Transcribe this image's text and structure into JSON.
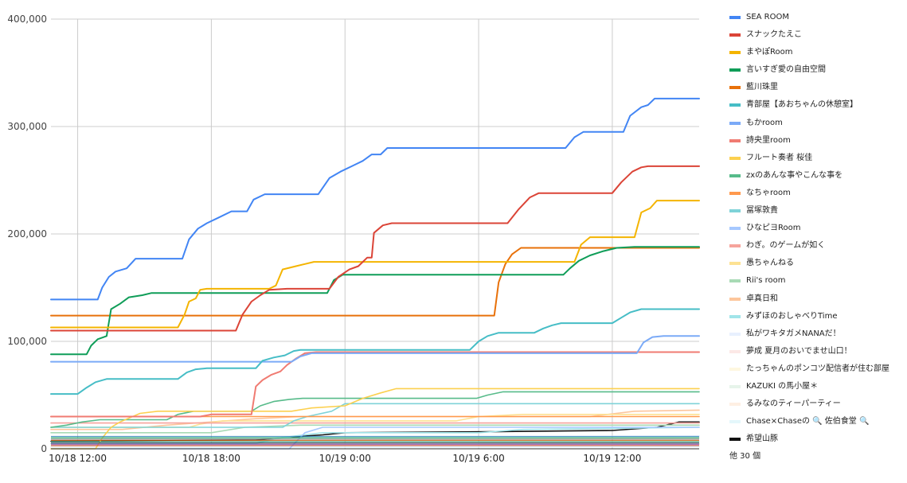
{
  "chart_data": {
    "type": "line",
    "title": "",
    "xlabel": "",
    "ylabel": "",
    "x_ticks": [
      "10/18 12:00",
      "10/18 18:00",
      "10/19 0:00",
      "10/19 6:00",
      "10/19 12:00"
    ],
    "x_tick_hours": [
      12,
      18,
      24,
      30,
      36
    ],
    "x_range_hours": [
      10.8,
      39.9
    ],
    "ylim": [
      0,
      400000
    ],
    "y_ticks": [
      0,
      100000,
      200000,
      300000,
      400000
    ],
    "y_tick_labels": [
      "0",
      "100,000",
      "200,000",
      "300,000",
      "400,000"
    ],
    "grid": true,
    "legend_position": "right",
    "legend_more": "他 30 個",
    "series": [
      {
        "name": "SEA ROOM",
        "color": "#4285f4",
        "points": [
          [
            10.8,
            139000
          ],
          [
            12.9,
            139000
          ],
          [
            13.1,
            150000
          ],
          [
            13.4,
            160000
          ],
          [
            13.7,
            165000
          ],
          [
            14.2,
            168000
          ],
          [
            14.6,
            177000
          ],
          [
            16.7,
            177000
          ],
          [
            17.0,
            195000
          ],
          [
            17.4,
            205000
          ],
          [
            17.8,
            210000
          ],
          [
            18.3,
            215000
          ],
          [
            18.9,
            221000
          ],
          [
            19.6,
            221000
          ],
          [
            19.9,
            232000
          ],
          [
            20.4,
            237000
          ],
          [
            22.8,
            237000
          ],
          [
            23.3,
            252000
          ],
          [
            23.8,
            258000
          ],
          [
            24.4,
            264000
          ],
          [
            24.8,
            268000
          ],
          [
            25.2,
            274000
          ],
          [
            25.6,
            274000
          ],
          [
            25.9,
            280000
          ],
          [
            33.9,
            280000
          ],
          [
            34.3,
            290000
          ],
          [
            34.7,
            295000
          ],
          [
            36.5,
            295000
          ],
          [
            36.8,
            310000
          ],
          [
            37.3,
            318000
          ],
          [
            37.6,
            320000
          ],
          [
            37.9,
            326000
          ],
          [
            39.9,
            326000
          ]
        ]
      },
      {
        "name": "スナックたえこ",
        "color": "#db4437",
        "points": [
          [
            10.8,
            110000
          ],
          [
            19.1,
            110000
          ],
          [
            19.4,
            125000
          ],
          [
            19.8,
            137000
          ],
          [
            20.2,
            143000
          ],
          [
            20.6,
            148000
          ],
          [
            21.4,
            149000
          ],
          [
            23.3,
            149000
          ],
          [
            23.7,
            160000
          ],
          [
            24.2,
            167000
          ],
          [
            24.6,
            170000
          ],
          [
            25.0,
            178000
          ],
          [
            25.2,
            178000
          ],
          [
            25.3,
            201000
          ],
          [
            25.7,
            208000
          ],
          [
            26.1,
            210000
          ],
          [
            31.3,
            210000
          ],
          [
            31.8,
            223000
          ],
          [
            32.3,
            234000
          ],
          [
            32.7,
            238000
          ],
          [
            36.0,
            238000
          ],
          [
            36.4,
            248000
          ],
          [
            36.9,
            258000
          ],
          [
            37.3,
            262000
          ],
          [
            37.6,
            263000
          ],
          [
            39.9,
            263000
          ]
        ]
      },
      {
        "name": "まやぽRoom",
        "color": "#f4b400",
        "points": [
          [
            10.8,
            113000
          ],
          [
            16.5,
            113000
          ],
          [
            16.8,
            125000
          ],
          [
            17.0,
            137000
          ],
          [
            17.3,
            140000
          ],
          [
            17.5,
            148000
          ],
          [
            17.8,
            149000
          ],
          [
            20.6,
            149000
          ],
          [
            20.9,
            152000
          ],
          [
            21.2,
            167000
          ],
          [
            21.8,
            170000
          ],
          [
            22.2,
            172000
          ],
          [
            22.6,
            174000
          ],
          [
            34.3,
            174000
          ],
          [
            34.6,
            190000
          ],
          [
            35.0,
            197000
          ],
          [
            37.0,
            197000
          ],
          [
            37.3,
            220000
          ],
          [
            37.7,
            224000
          ],
          [
            38.0,
            231000
          ],
          [
            39.9,
            231000
          ]
        ]
      },
      {
        "name": "言いすぎ愛の自由空間",
        "color": "#0f9d58",
        "points": [
          [
            10.8,
            88000
          ],
          [
            12.4,
            88000
          ],
          [
            12.6,
            96000
          ],
          [
            12.9,
            102000
          ],
          [
            13.3,
            105000
          ],
          [
            13.5,
            130000
          ],
          [
            13.9,
            135000
          ],
          [
            14.3,
            141000
          ],
          [
            14.9,
            143000
          ],
          [
            15.3,
            145000
          ],
          [
            23.2,
            145000
          ],
          [
            23.5,
            157000
          ],
          [
            23.9,
            162000
          ],
          [
            33.8,
            162000
          ],
          [
            34.1,
            168000
          ],
          [
            34.5,
            175000
          ],
          [
            35.0,
            180000
          ],
          [
            35.6,
            184000
          ],
          [
            36.2,
            187000
          ],
          [
            37.0,
            188000
          ],
          [
            39.9,
            188000
          ]
        ]
      },
      {
        "name": "藍川珠里",
        "color": "#e8710a",
        "points": [
          [
            10.8,
            124000
          ],
          [
            30.7,
            124000
          ],
          [
            30.9,
            155000
          ],
          [
            31.2,
            172000
          ],
          [
            31.5,
            181000
          ],
          [
            31.9,
            187000
          ],
          [
            39.9,
            187000
          ]
        ]
      },
      {
        "name": "青部屋【あおちゃんの休憩室】",
        "color": "#46bdc6",
        "points": [
          [
            10.8,
            51000
          ],
          [
            12.0,
            51000
          ],
          [
            12.4,
            57000
          ],
          [
            12.8,
            62000
          ],
          [
            13.3,
            65000
          ],
          [
            16.5,
            65000
          ],
          [
            16.9,
            71000
          ],
          [
            17.3,
            74000
          ],
          [
            17.8,
            75000
          ],
          [
            20.0,
            75000
          ],
          [
            20.3,
            82000
          ],
          [
            20.8,
            85000
          ],
          [
            21.3,
            87000
          ],
          [
            21.7,
            91000
          ],
          [
            22.0,
            92000
          ],
          [
            29.6,
            92000
          ],
          [
            30.0,
            100000
          ],
          [
            30.4,
            105000
          ],
          [
            30.9,
            108000
          ],
          [
            32.5,
            108000
          ],
          [
            32.9,
            112000
          ],
          [
            33.3,
            115000
          ],
          [
            33.7,
            117000
          ],
          [
            36.0,
            117000
          ],
          [
            36.4,
            122000
          ],
          [
            36.8,
            127000
          ],
          [
            37.3,
            130000
          ],
          [
            39.9,
            130000
          ]
        ]
      },
      {
        "name": "もかroom",
        "color": "#7baaf7",
        "points": [
          [
            10.8,
            81000
          ],
          [
            21.6,
            81000
          ],
          [
            22.0,
            86000
          ],
          [
            22.5,
            89000
          ],
          [
            37.1,
            89000
          ],
          [
            37.4,
            99000
          ],
          [
            37.8,
            104000
          ],
          [
            38.3,
            105000
          ],
          [
            39.9,
            105000
          ]
        ]
      },
      {
        "name": "詩央里room",
        "color": "#f07b72",
        "points": [
          [
            10.8,
            30000
          ],
          [
            17.5,
            30000
          ],
          [
            18.0,
            32000
          ],
          [
            19.8,
            32000
          ],
          [
            20.0,
            58000
          ],
          [
            20.3,
            64000
          ],
          [
            20.7,
            69000
          ],
          [
            21.1,
            72000
          ],
          [
            21.4,
            78000
          ],
          [
            21.8,
            84000
          ],
          [
            22.2,
            89000
          ],
          [
            22.7,
            90000
          ],
          [
            39.9,
            90000
          ]
        ]
      },
      {
        "name": "フルート奏者 桜佳",
        "color": "#fcd04f",
        "points": [
          [
            10.8,
            0
          ],
          [
            12.8,
            0
          ],
          [
            13.1,
            10000
          ],
          [
            13.5,
            20000
          ],
          [
            13.9,
            25000
          ],
          [
            14.8,
            33000
          ],
          [
            15.6,
            35000
          ],
          [
            21.6,
            35000
          ],
          [
            22.5,
            38000
          ],
          [
            24.0,
            40000
          ],
          [
            24.8,
            47000
          ],
          [
            25.6,
            52000
          ],
          [
            26.3,
            56000
          ],
          [
            39.9,
            56000
          ]
        ]
      },
      {
        "name": "zxのあんな事やこんな事を",
        "color": "#57bb8a",
        "points": [
          [
            10.8,
            20000
          ],
          [
            11.5,
            22000
          ],
          [
            12.2,
            25000
          ],
          [
            13.0,
            27000
          ],
          [
            16.0,
            27000
          ],
          [
            16.5,
            32000
          ],
          [
            17.2,
            35000
          ],
          [
            19.8,
            35000
          ],
          [
            20.2,
            40000
          ],
          [
            20.8,
            44000
          ],
          [
            21.5,
            46000
          ],
          [
            22.1,
            47000
          ],
          [
            29.9,
            47000
          ],
          [
            30.4,
            50000
          ],
          [
            31.1,
            53000
          ],
          [
            39.9,
            53000
          ]
        ]
      },
      {
        "name": "なちゃroom",
        "color": "#ff994d",
        "points": [
          [
            10.8,
            30000
          ],
          [
            39.9,
            30000
          ]
        ]
      },
      {
        "name": "冨塚敦貴",
        "color": "#7fd3d8",
        "points": [
          [
            10.8,
            20000
          ],
          [
            21.2,
            20000
          ],
          [
            21.7,
            26000
          ],
          [
            22.3,
            30000
          ],
          [
            23.4,
            35000
          ],
          [
            24.0,
            42000
          ],
          [
            39.9,
            42000
          ]
        ]
      },
      {
        "name": "ひなピヨRoom",
        "color": "#a6c8ff",
        "points": [
          [
            10.8,
            0
          ],
          [
            21.5,
            0
          ],
          [
            22.2,
            15000
          ],
          [
            23.0,
            20000
          ],
          [
            25.0,
            20000
          ],
          [
            39.9,
            20000
          ]
        ]
      },
      {
        "name": "わぎ。のゲームが如く",
        "color": "#f6a39c",
        "points": [
          [
            10.8,
            24000
          ],
          [
            39.9,
            24000
          ]
        ]
      },
      {
        "name": "愚ちゃんねる",
        "color": "#fde293",
        "points": [
          [
            10.8,
            20000
          ],
          [
            17.0,
            20000
          ],
          [
            17.5,
            23000
          ],
          [
            18.5,
            26000
          ],
          [
            29.0,
            26000
          ],
          [
            30.0,
            30000
          ],
          [
            32.0,
            32000
          ],
          [
            39.9,
            32000
          ]
        ]
      },
      {
        "name": "Rii's room",
        "color": "#a8dab5",
        "points": [
          [
            10.8,
            15000
          ],
          [
            18.0,
            15000
          ],
          [
            19.5,
            20000
          ],
          [
            22.0,
            22000
          ],
          [
            39.9,
            22000
          ]
        ]
      },
      {
        "name": "卓真日和",
        "color": "#fdc69c",
        "points": [
          [
            10.8,
            18000
          ],
          [
            14.0,
            18000
          ],
          [
            16.0,
            22000
          ],
          [
            20.0,
            28000
          ],
          [
            22.0,
            30000
          ],
          [
            35.0,
            30000
          ],
          [
            37.0,
            35000
          ],
          [
            39.9,
            36000
          ]
        ]
      },
      {
        "name": "みずほのおしゃべりTime",
        "color": "#a1e4e9",
        "points": [
          [
            10.8,
            5000
          ],
          [
            20.0,
            5000
          ],
          [
            21.0,
            10000
          ],
          [
            23.0,
            15000
          ],
          [
            30.0,
            15000
          ],
          [
            32.0,
            18000
          ],
          [
            39.9,
            20000
          ]
        ]
      },
      {
        "name": "私がワキタガメNANAだ！",
        "color": "#e8f0fe",
        "points": [
          [
            10.8,
            9000
          ],
          [
            39.9,
            12000
          ]
        ]
      },
      {
        "name": "夢成 夏月のおいでませ山口！",
        "color": "#fce8e6",
        "points": [
          [
            10.8,
            6000
          ],
          [
            25.0,
            8000
          ],
          [
            39.9,
            10000
          ]
        ]
      },
      {
        "name": "たっちゃんのポンコツ配信者が住む部屋",
        "color": "#fef7e0",
        "points": [
          [
            10.8,
            4000
          ],
          [
            39.9,
            7000
          ]
        ]
      },
      {
        "name": "KAZUKI の馬小屋＊",
        "color": "#e6f4ea",
        "points": [
          [
            10.8,
            3000
          ],
          [
            39.9,
            5000
          ]
        ]
      },
      {
        "name": "るみなのティーパーティー",
        "color": "#feefe3",
        "points": [
          [
            10.8,
            2000
          ],
          [
            39.9,
            4000
          ]
        ]
      },
      {
        "name": "Chase×Chaseの 🔍 佐伯食堂 🔍",
        "color": "#e4f7fb",
        "points": [
          [
            10.8,
            1000
          ],
          [
            39.9,
            2000
          ]
        ]
      },
      {
        "name": "希望山豚",
        "color": "#111111",
        "points": [
          [
            10.8,
            7000
          ],
          [
            20.0,
            8000
          ],
          [
            21.0,
            10000
          ],
          [
            23.0,
            13000
          ],
          [
            24.0,
            15000
          ],
          [
            31.0,
            16000
          ],
          [
            36.0,
            17000
          ],
          [
            38.0,
            20000
          ],
          [
            39.0,
            25000
          ],
          [
            39.9,
            25000
          ]
        ]
      }
    ]
  }
}
